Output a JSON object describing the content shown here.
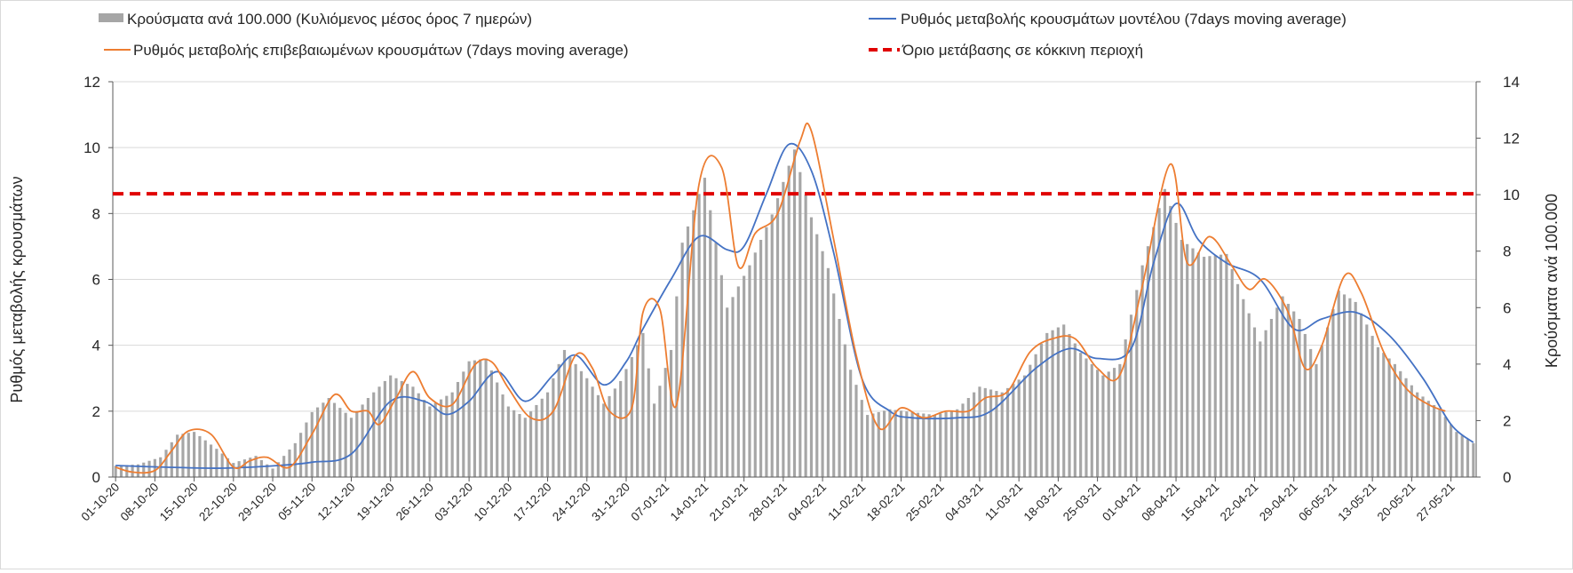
{
  "chart_data": {
    "type": "bar+line",
    "legend": {
      "bars": "Κρούσματα ανά 100.000 (Κυλιόμενος μέσος όρος 7 ημερών)",
      "model_line": "Ρυθμός μεταβολής κρουσμάτων μοντέλου (7days moving average)",
      "confirmed_line": "Ρυθμός μεταβολής επιβεβαιωμένων κρουσμάτων (7days moving average)",
      "threshold": "Όριο μετάβασης σε κόκκινη περιοχή"
    },
    "ylabel_left": "Ρυθμός μεταβολής κρουσμάτων",
    "ylabel_right": "Κρούσματα ανά 100.000",
    "ylim_left": [
      0,
      12
    ],
    "yticks_left": [
      "0",
      "2",
      "4",
      "6",
      "8",
      "10",
      "12"
    ],
    "ylim_right": [
      0,
      14
    ],
    "yticks_right": [
      "0",
      "2",
      "4",
      "6",
      "8",
      "10",
      "12",
      "14"
    ],
    "x_range": [
      "2020-10-01",
      "2021-05-31"
    ],
    "x_tick_labels": [
      "01-10-20",
      "08-10-20",
      "15-10-20",
      "22-10-20",
      "29-10-20",
      "05-11-20",
      "12-11-20",
      "19-11-20",
      "26-11-20",
      "03-12-20",
      "10-12-20",
      "17-12-20",
      "24-12-20",
      "31-12-20",
      "07-01-21",
      "14-01-21",
      "21-01-21",
      "28-01-21",
      "04-02-21",
      "11-02-21",
      "18-02-21",
      "25-02-21",
      "04-03-21",
      "11-03-21",
      "18-03-21",
      "25-03-21",
      "01-04-21",
      "08-04-21",
      "15-04-21",
      "22-04-21",
      "29-04-21",
      "06-05-21",
      "13-05-21",
      "20-05-21",
      "27-05-21"
    ],
    "threshold_left_axis": 8.6,
    "colors": {
      "bars": "#a6a6a6",
      "model_line": "#4472c4",
      "confirmed_line": "#ed7d31",
      "threshold": "#e00000",
      "grid": "#d9d9d9"
    },
    "series": [
      {
        "name": "Κρούσματα ανά 100.000 (Κυλιόμενος μέσος όρος 7 ημερών)",
        "axis": "right",
        "kind": "bar",
        "points": [
          [
            "2020-10-01",
            0.4
          ],
          [
            "2020-10-05",
            0.45
          ],
          [
            "2020-10-09",
            0.7
          ],
          [
            "2020-10-12",
            1.5
          ],
          [
            "2020-10-15",
            1.6
          ],
          [
            "2020-10-19",
            1.0
          ],
          [
            "2020-10-22",
            0.5
          ],
          [
            "2020-10-26",
            0.75
          ],
          [
            "2020-10-29",
            0.3
          ],
          [
            "2020-11-02",
            1.2
          ],
          [
            "2020-11-05",
            2.3
          ],
          [
            "2020-11-08",
            2.8
          ],
          [
            "2020-11-12",
            2.1
          ],
          [
            "2020-11-15",
            2.8
          ],
          [
            "2020-11-19",
            3.6
          ],
          [
            "2020-11-23",
            3.2
          ],
          [
            "2020-11-26",
            2.5
          ],
          [
            "2020-11-30",
            3.0
          ],
          [
            "2020-12-03",
            4.1
          ],
          [
            "2020-12-06",
            4.2
          ],
          [
            "2020-12-10",
            2.5
          ],
          [
            "2020-12-13",
            2.1
          ],
          [
            "2020-12-17",
            3.0
          ],
          [
            "2020-12-20",
            4.5
          ],
          [
            "2020-12-24",
            3.5
          ],
          [
            "2020-12-27",
            2.6
          ],
          [
            "2020-12-30",
            3.4
          ],
          [
            "2021-01-03",
            5.1
          ],
          [
            "2021-01-05",
            2.6
          ],
          [
            "2021-01-08",
            4.5
          ],
          [
            "2021-01-10",
            8.3
          ],
          [
            "2021-01-14",
            10.6
          ],
          [
            "2021-01-18",
            6.0
          ],
          [
            "2021-01-22",
            7.5
          ],
          [
            "2021-01-26",
            9.3
          ],
          [
            "2021-01-30",
            11.6
          ],
          [
            "2021-02-02",
            9.2
          ],
          [
            "2021-02-05",
            7.4
          ],
          [
            "2021-02-09",
            3.8
          ],
          [
            "2021-02-12",
            2.2
          ],
          [
            "2021-02-16",
            2.4
          ],
          [
            "2021-02-20",
            2.3
          ],
          [
            "2021-02-24",
            2.2
          ],
          [
            "2021-02-28",
            2.4
          ],
          [
            "2021-03-04",
            3.2
          ],
          [
            "2021-03-08",
            3.0
          ],
          [
            "2021-03-12",
            3.6
          ],
          [
            "2021-03-16",
            5.1
          ],
          [
            "2021-03-19",
            5.4
          ],
          [
            "2021-03-22",
            4.4
          ],
          [
            "2021-03-26",
            3.6
          ],
          [
            "2021-03-29",
            4.0
          ],
          [
            "2021-04-02",
            7.5
          ],
          [
            "2021-04-06",
            10.2
          ],
          [
            "2021-04-09",
            8.4
          ],
          [
            "2021-04-13",
            7.8
          ],
          [
            "2021-04-17",
            7.9
          ],
          [
            "2021-04-20",
            6.3
          ],
          [
            "2021-04-23",
            4.8
          ],
          [
            "2021-04-27",
            6.4
          ],
          [
            "2021-04-30",
            5.6
          ],
          [
            "2021-05-03",
            4.0
          ],
          [
            "2021-05-07",
            6.6
          ],
          [
            "2021-05-10",
            6.2
          ],
          [
            "2021-05-14",
            4.6
          ],
          [
            "2021-05-17",
            4.0
          ],
          [
            "2021-05-21",
            3.0
          ],
          [
            "2021-05-25",
            2.4
          ],
          [
            "2021-05-28",
            1.6
          ],
          [
            "2021-05-31",
            1.2
          ]
        ]
      },
      {
        "name": "Ρυθμός μεταβολής κρουσμάτων μοντέλου (7days moving average)",
        "axis": "left",
        "kind": "line",
        "points": [
          [
            "2020-10-01",
            0.35
          ],
          [
            "2020-10-10",
            0.3
          ],
          [
            "2020-10-20",
            0.27
          ],
          [
            "2020-10-30",
            0.35
          ],
          [
            "2020-11-05",
            0.45
          ],
          [
            "2020-11-12",
            0.7
          ],
          [
            "2020-11-19",
            2.3
          ],
          [
            "2020-11-25",
            2.3
          ],
          [
            "2020-11-29",
            1.9
          ],
          [
            "2020-12-03",
            2.3
          ],
          [
            "2020-12-08",
            3.2
          ],
          [
            "2020-12-13",
            2.3
          ],
          [
            "2020-12-18",
            3.1
          ],
          [
            "2020-12-22",
            3.7
          ],
          [
            "2020-12-27",
            2.8
          ],
          [
            "2020-12-31",
            3.5
          ],
          [
            "2021-01-03",
            4.5
          ],
          [
            "2021-01-08",
            6.0
          ],
          [
            "2021-01-13",
            7.3
          ],
          [
            "2021-01-18",
            6.9
          ],
          [
            "2021-01-21",
            7.0
          ],
          [
            "2021-01-25",
            8.6
          ],
          [
            "2021-01-29",
            10.1
          ],
          [
            "2021-02-02",
            9.3
          ],
          [
            "2021-02-06",
            6.8
          ],
          [
            "2021-02-11",
            3.0
          ],
          [
            "2021-02-16",
            2.0
          ],
          [
            "2021-02-20",
            1.8
          ],
          [
            "2021-02-28",
            1.8
          ],
          [
            "2021-03-06",
            2.0
          ],
          [
            "2021-03-14",
            3.3
          ],
          [
            "2021-03-20",
            3.9
          ],
          [
            "2021-03-25",
            3.6
          ],
          [
            "2021-03-31",
            3.9
          ],
          [
            "2021-04-04",
            6.5
          ],
          [
            "2021-04-08",
            8.3
          ],
          [
            "2021-04-12",
            7.2
          ],
          [
            "2021-04-17",
            6.5
          ],
          [
            "2021-04-23",
            6.0
          ],
          [
            "2021-04-29",
            4.5
          ],
          [
            "2021-05-04",
            4.8
          ],
          [
            "2021-05-10",
            5.0
          ],
          [
            "2021-05-16",
            4.3
          ],
          [
            "2021-05-22",
            3.0
          ],
          [
            "2021-05-27",
            1.6
          ],
          [
            "2021-05-31",
            1.05
          ]
        ]
      },
      {
        "name": "Ρυθμός μεταβολής επιβεβαιωμένων κρουσμάτων (7days moving average)",
        "axis": "left",
        "kind": "line",
        "points": [
          [
            "2020-10-01",
            0.3
          ],
          [
            "2020-10-04",
            0.15
          ],
          [
            "2020-10-08",
            0.2
          ],
          [
            "2020-10-11",
            0.8
          ],
          [
            "2020-10-14",
            1.4
          ],
          [
            "2020-10-18",
            1.3
          ],
          [
            "2020-10-22",
            0.3
          ],
          [
            "2020-10-25",
            0.5
          ],
          [
            "2020-10-28",
            0.6
          ],
          [
            "2020-11-01",
            0.3
          ],
          [
            "2020-11-05",
            1.3
          ],
          [
            "2020-11-09",
            2.5
          ],
          [
            "2020-11-12",
            2.0
          ],
          [
            "2020-11-15",
            2.0
          ],
          [
            "2020-11-17",
            1.6
          ],
          [
            "2020-11-20",
            2.4
          ],
          [
            "2020-11-23",
            3.2
          ],
          [
            "2020-11-26",
            2.4
          ],
          [
            "2020-11-30",
            2.2
          ],
          [
            "2020-12-04",
            3.4
          ],
          [
            "2020-12-07",
            3.5
          ],
          [
            "2020-12-10",
            2.7
          ],
          [
            "2020-12-14",
            1.8
          ],
          [
            "2020-12-18",
            2.0
          ],
          [
            "2020-12-22",
            3.7
          ],
          [
            "2020-12-25",
            3.3
          ],
          [
            "2020-12-28",
            2.0
          ],
          [
            "2021-01-01",
            2.1
          ],
          [
            "2021-01-03",
            5.0
          ],
          [
            "2021-01-06",
            5.1
          ],
          [
            "2021-01-09",
            2.2
          ],
          [
            "2021-01-13",
            8.9
          ],
          [
            "2021-01-17",
            9.4
          ],
          [
            "2021-01-20",
            6.4
          ],
          [
            "2021-01-23",
            7.4
          ],
          [
            "2021-01-27",
            8.0
          ],
          [
            "2021-01-31",
            10.2
          ],
          [
            "2021-02-02",
            10.5
          ],
          [
            "2021-02-06",
            7.2
          ],
          [
            "2021-02-10",
            3.7
          ],
          [
            "2021-02-14",
            1.5
          ],
          [
            "2021-02-18",
            2.1
          ],
          [
            "2021-02-22",
            1.8
          ],
          [
            "2021-02-26",
            2.0
          ],
          [
            "2021-03-02",
            2.0
          ],
          [
            "2021-03-05",
            2.4
          ],
          [
            "2021-03-09",
            2.6
          ],
          [
            "2021-03-13",
            3.8
          ],
          [
            "2021-03-17",
            4.2
          ],
          [
            "2021-03-21",
            4.2
          ],
          [
            "2021-03-25",
            3.3
          ],
          [
            "2021-03-29",
            3.1
          ],
          [
            "2021-04-02",
            5.8
          ],
          [
            "2021-04-07",
            9.5
          ],
          [
            "2021-04-10",
            6.5
          ],
          [
            "2021-04-14",
            7.3
          ],
          [
            "2021-04-18",
            6.4
          ],
          [
            "2021-04-21",
            5.7
          ],
          [
            "2021-04-24",
            6.0
          ],
          [
            "2021-04-28",
            5.0
          ],
          [
            "2021-05-01",
            3.3
          ],
          [
            "2021-05-04",
            4.0
          ],
          [
            "2021-05-08",
            6.1
          ],
          [
            "2021-05-11",
            5.6
          ],
          [
            "2021-05-15",
            3.8
          ],
          [
            "2021-05-19",
            2.7
          ],
          [
            "2021-05-23",
            2.2
          ],
          [
            "2021-05-26",
            2.0
          ]
        ]
      }
    ]
  }
}
